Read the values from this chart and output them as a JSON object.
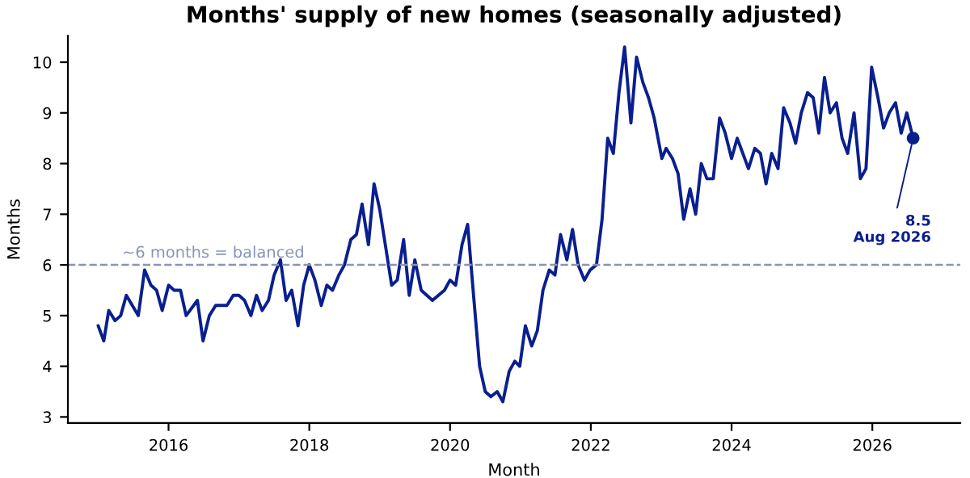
{
  "chart_data": {
    "type": "line",
    "title": "Months' supply of new homes (seasonally adjusted)",
    "xlabel": "Month",
    "ylabel": "Months",
    "series": [
      {
        "type": "line",
        "color": "#0a1f8f",
        "x": [
          2015.0,
          2015.08,
          2015.15,
          2015.24,
          2015.32,
          2015.4,
          2015.57,
          2015.66,
          2015.75,
          2015.83,
          2015.91,
          2016.0,
          2016.08,
          2016.17,
          2016.25,
          2016.41,
          2016.49,
          2016.58,
          2016.67,
          2016.83,
          2016.92,
          2017.0,
          2017.08,
          2017.17,
          2017.25,
          2017.33,
          2017.42,
          2017.5,
          2017.59,
          2017.67,
          2017.75,
          2017.84,
          2017.92,
          2018.0,
          2018.08,
          2018.17,
          2018.25,
          2018.33,
          2018.42,
          2018.5,
          2018.59,
          2018.67,
          2018.75,
          2018.84,
          2018.92,
          2019.0,
          2019.08,
          2019.17,
          2019.25,
          2019.34,
          2019.42,
          2019.5,
          2019.59,
          2019.75,
          2019.92,
          2020.0,
          2020.08,
          2020.17,
          2020.25,
          2020.34,
          2020.42,
          2020.5,
          2020.58,
          2020.67,
          2020.75,
          2020.84,
          2020.92,
          2020.99,
          2021.07,
          2021.16,
          2021.24,
          2021.32,
          2021.41,
          2021.49,
          2021.57,
          2021.66,
          2021.74,
          2021.82,
          2021.91,
          2021.99,
          2022.08,
          2022.16,
          2022.24,
          2022.32,
          2022.4,
          2022.48,
          2022.57,
          2022.65,
          2022.74,
          2022.82,
          2022.9,
          2023.01,
          2023.07,
          2023.16,
          2023.24,
          2023.32,
          2023.41,
          2023.49,
          2023.57,
          2023.65,
          2023.74,
          2023.83,
          2023.91,
          2024.0,
          2024.08,
          2024.16,
          2024.24,
          2024.33,
          2024.41,
          2024.49,
          2024.57,
          2024.66,
          2024.74,
          2024.83,
          2024.91,
          2024.99,
          2025.08,
          2025.16,
          2025.24,
          2025.32,
          2025.4,
          2025.49,
          2025.57,
          2025.65,
          2025.74,
          2025.83,
          2025.91,
          2025.99,
          2026.08,
          2026.16,
          2026.24,
          2026.33,
          2026.41,
          2026.49,
          2026.58
        ],
        "values": [
          4.8,
          4.5,
          5.1,
          4.9,
          5.0,
          5.4,
          5.0,
          5.9,
          5.6,
          5.5,
          5.1,
          5.6,
          5.5,
          5.5,
          5.0,
          5.3,
          4.5,
          5.0,
          5.2,
          5.2,
          5.4,
          5.4,
          5.3,
          5.0,
          5.4,
          5.1,
          5.3,
          5.8,
          6.1,
          5.3,
          5.5,
          4.8,
          5.6,
          6.0,
          5.7,
          5.2,
          5.6,
          5.5,
          5.8,
          6.0,
          6.5,
          6.6,
          7.2,
          6.4,
          7.6,
          7.1,
          6.4,
          5.6,
          5.7,
          6.5,
          5.4,
          6.1,
          5.5,
          5.3,
          5.5,
          5.7,
          5.6,
          6.4,
          6.8,
          5.3,
          4.0,
          3.5,
          3.4,
          3.5,
          3.3,
          3.9,
          4.1,
          4.0,
          4.8,
          4.4,
          4.7,
          5.5,
          5.9,
          5.8,
          6.6,
          6.1,
          6.7,
          6.0,
          5.7,
          5.9,
          6.0,
          6.9,
          8.5,
          8.2,
          9.4,
          10.3,
          8.8,
          10.1,
          9.6,
          9.3,
          8.9,
          8.1,
          8.3,
          8.1,
          7.8,
          6.9,
          7.5,
          7.0,
          8.0,
          7.7,
          7.7,
          8.9,
          8.6,
          8.1,
          8.5,
          8.2,
          7.9,
          8.3,
          8.2,
          7.6,
          8.2,
          7.9,
          9.1,
          8.8,
          8.4,
          9.0,
          9.4,
          9.3,
          8.6,
          9.7,
          9.0,
          9.2,
          8.5,
          8.2,
          9.0,
          7.7,
          7.9,
          9.9,
          9.3,
          8.7,
          9.0,
          9.2,
          8.6,
          9.0,
          8.5
        ]
      },
      {
        "type": "scatter",
        "color": "#0a1f8f",
        "x": [
          2026.58
        ],
        "values": [
          8.5
        ]
      }
    ],
    "xlim": [
      2014.57,
      2027.25
    ],
    "xticks": [
      2016,
      2018,
      2020,
      2022,
      2024,
      2026
    ],
    "ylim": [
      2.88,
      10.52
    ],
    "yticks": [
      3,
      4,
      5,
      6,
      7,
      8,
      9,
      10
    ],
    "ref_lines": [
      {
        "axis": "y",
        "value": 6,
        "label": "~6 months = balanced",
        "color": "#8a94b4",
        "line_style": "dashed"
      }
    ],
    "annotations": [
      {
        "text": "8.5\nAug 2026",
        "x": 2026.58,
        "y": 8.5
      }
    ],
    "grid": false,
    "legend": false
  }
}
